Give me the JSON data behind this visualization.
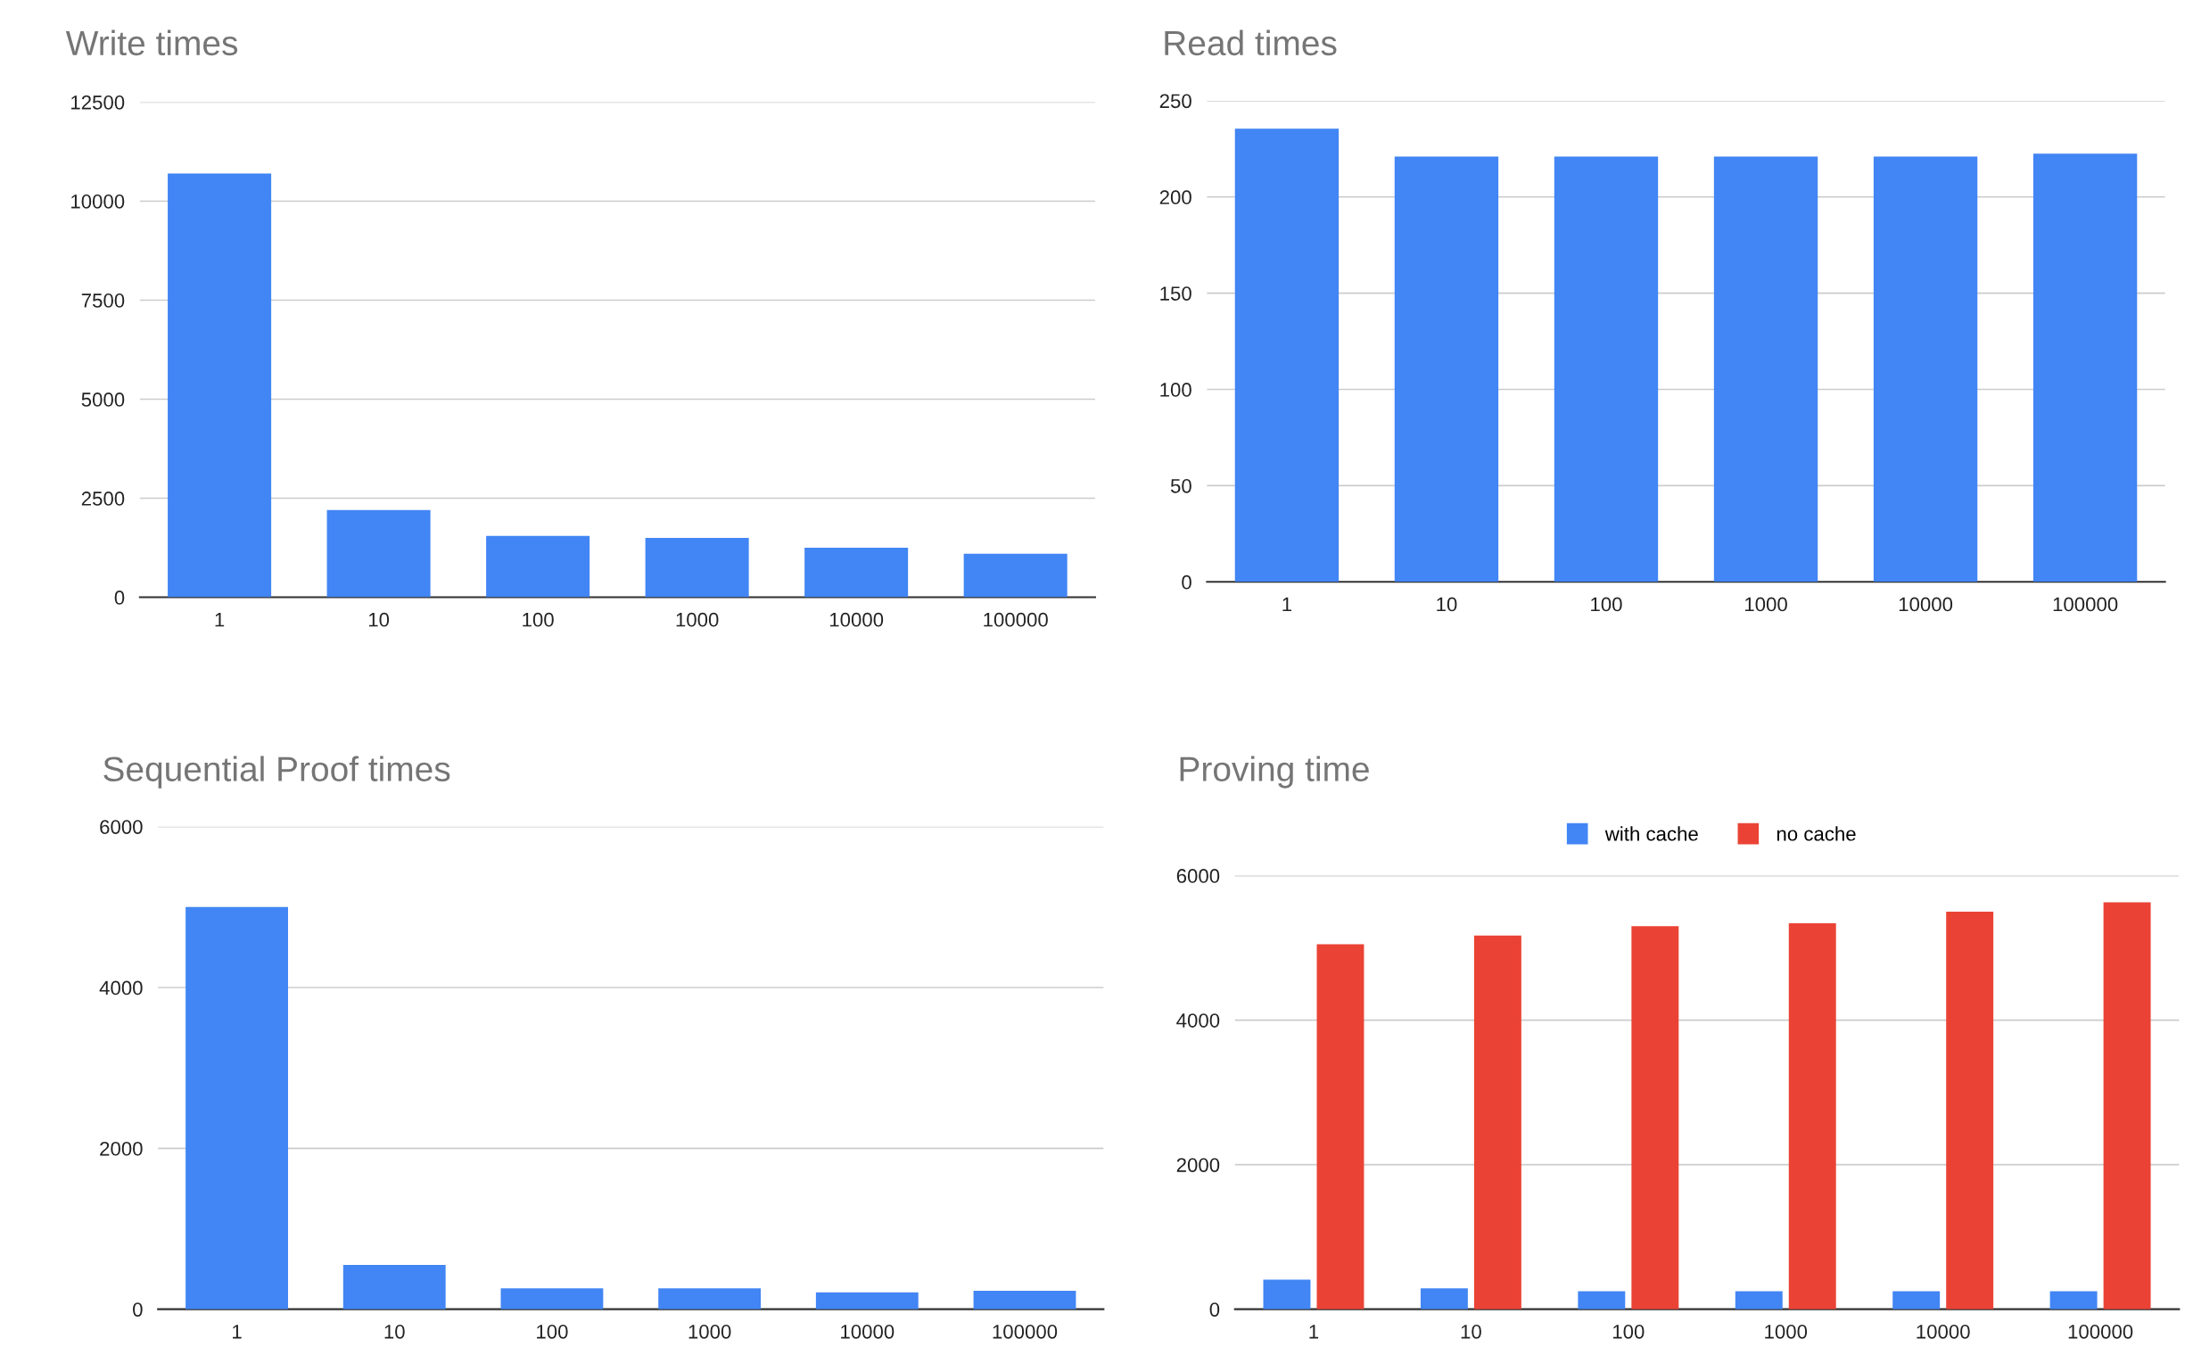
{
  "chart_data": [
    {
      "type": "bar",
      "title": "Write times",
      "categories": [
        "1",
        "10",
        "100",
        "1000",
        "10000",
        "100000"
      ],
      "values": [
        10700,
        2200,
        1550,
        1500,
        1250,
        1100
      ],
      "color": "#4285f4",
      "ylim": [
        0,
        12500
      ],
      "yticks": [
        0,
        2500,
        5000,
        7500,
        10000,
        12500
      ],
      "grid": "y"
    },
    {
      "type": "bar",
      "title": "Read times",
      "categories": [
        "1",
        "10",
        "100",
        "1000",
        "10000",
        "100000"
      ],
      "values": [
        235.5,
        221,
        221,
        221,
        221,
        222.5
      ],
      "color": "#4285f4",
      "ylim": [
        0,
        250
      ],
      "yticks": [
        0,
        50,
        100,
        150,
        200,
        250
      ],
      "grid": "y"
    },
    {
      "type": "bar",
      "title": "Sequential Proof times",
      "categories": [
        "1",
        "10",
        "100",
        "1000",
        "10000",
        "100000"
      ],
      "values": [
        5000,
        550,
        260,
        260,
        210,
        230
      ],
      "color": "#4285f4",
      "ylim": [
        0,
        6000
      ],
      "yticks": [
        0,
        2000,
        4000,
        6000
      ],
      "grid": "y"
    },
    {
      "type": "bar",
      "title": "Proving time",
      "categories": [
        "1",
        "10",
        "100",
        "1000",
        "10000",
        "100000"
      ],
      "series": [
        {
          "name": "with cache",
          "color": "#4285f4",
          "values": [
            410,
            290,
            250,
            250,
            250,
            250
          ]
        },
        {
          "name": "no cache",
          "color": "#ea4335",
          "values": [
            5050,
            5170,
            5300,
            5340,
            5500,
            5630
          ]
        }
      ],
      "ylim": [
        0,
        6000
      ],
      "yticks": [
        0,
        2000,
        4000,
        6000
      ],
      "grid": "y",
      "legend": "top"
    }
  ]
}
